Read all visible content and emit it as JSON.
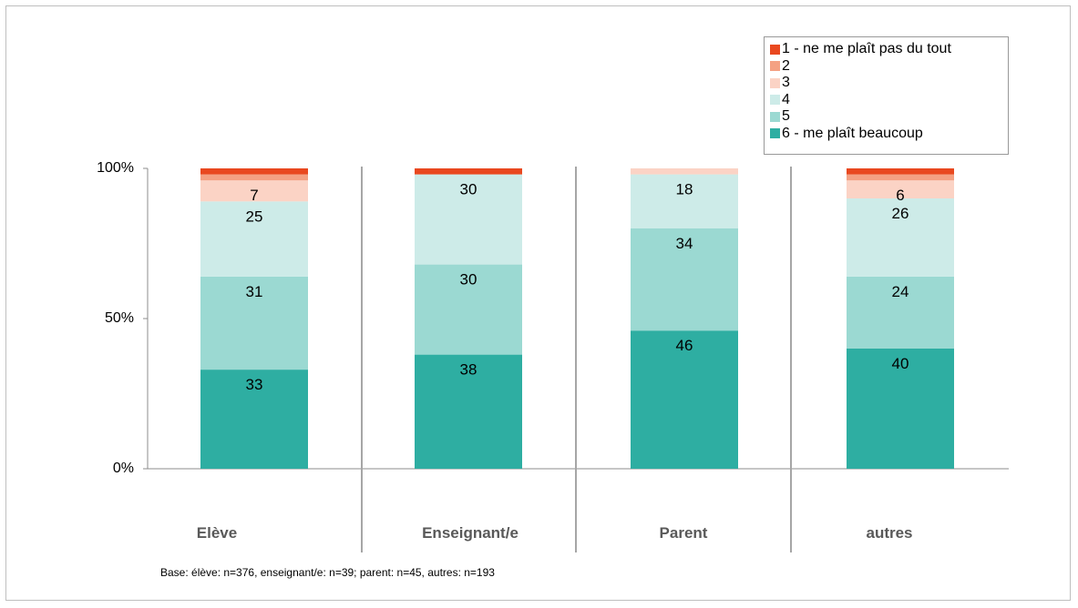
{
  "chart_data": {
    "type": "bar",
    "stacked": true,
    "percent": true,
    "categories": [
      "Elève",
      "Enseignant/e",
      "Parent",
      "autres"
    ],
    "series": [
      {
        "name": "6 - me plaît beaucoup",
        "color": "#2eaea2",
        "values": [
          33,
          38,
          46,
          40
        ]
      },
      {
        "name": "5",
        "color": "#9bd9d2",
        "values": [
          31,
          30,
          34,
          24
        ]
      },
      {
        "name": "4",
        "color": "#cdebe8",
        "values": [
          25,
          30,
          18,
          26
        ]
      },
      {
        "name": "3",
        "color": "#fbd3c5",
        "values": [
          7,
          0,
          2,
          6
        ]
      },
      {
        "name": "2",
        "color": "#f4a183",
        "values": [
          2,
          0,
          0,
          2
        ]
      },
      {
        "name": "1 - ne me plaît pas du tout",
        "color": "#e9481f",
        "values": [
          2,
          2,
          0,
          2
        ]
      }
    ],
    "data_labels": [
      [
        "33",
        "31",
        "25",
        "7",
        "",
        ""
      ],
      [
        "38",
        "30",
        "30",
        "",
        "",
        ""
      ],
      [
        "46",
        "34",
        "18",
        "",
        "",
        ""
      ],
      [
        "40",
        "24",
        "26",
        "6",
        "",
        ""
      ]
    ],
    "yticks": [
      "0%",
      "50%",
      "100%"
    ],
    "ylim": [
      0,
      100
    ],
    "legend_position": "top-right",
    "legend_order": [
      "1 - ne me plaît pas du tout",
      "2",
      "3",
      "4",
      "5",
      "6 - me plaît beaucoup"
    ],
    "footnote": "Base: élève: n=376, enseignant/e: n=39; parent: n=45, autres: n=193"
  }
}
